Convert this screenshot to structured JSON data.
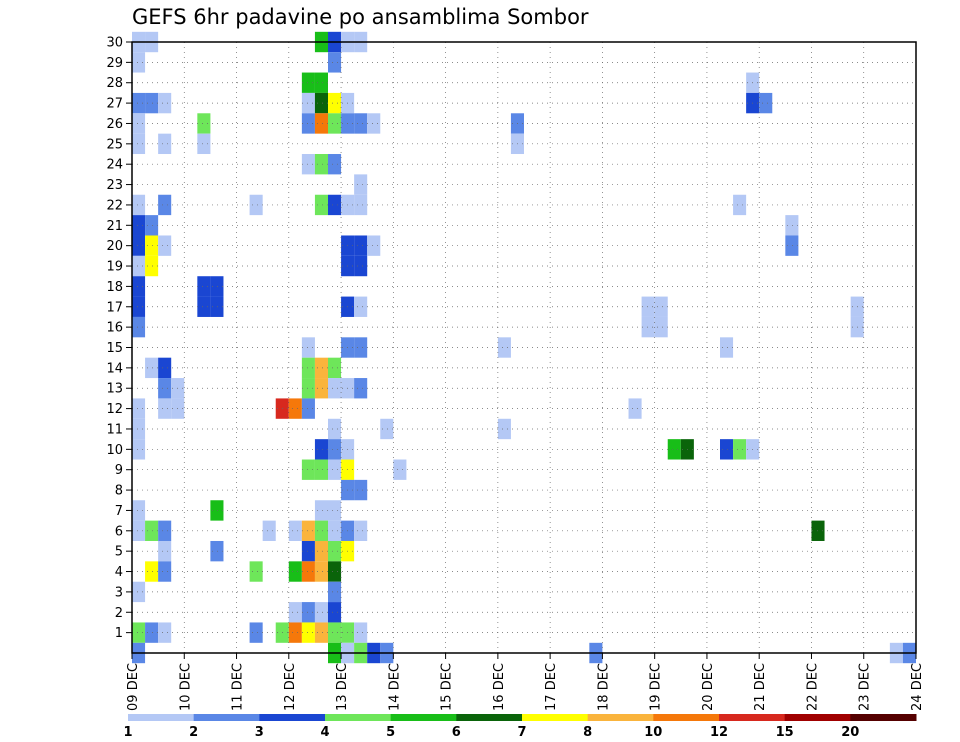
{
  "chart_data": {
    "type": "heatmap",
    "title": "GEFS 6hr padavine po ansamblima Sombor",
    "xlabel": "",
    "ylabel": "",
    "x_tick_labels": [
      "09 DEC",
      "10 DEC",
      "11 DEC",
      "12 DEC",
      "13 DEC",
      "14 DEC",
      "15 DEC",
      "16 DEC",
      "17 DEC",
      "18 DEC",
      "19 DEC",
      "20 DEC",
      "21 DEC",
      "22 DEC",
      "23 DEC",
      "24 DEC"
    ],
    "y_tick_labels": [
      "1",
      "2",
      "3",
      "4",
      "5",
      "6",
      "7",
      "8",
      "9",
      "10",
      "11",
      "12",
      "13",
      "14",
      "15",
      "16",
      "17",
      "18",
      "19",
      "20",
      "21",
      "22",
      "23",
      "24",
      "25",
      "26",
      "27",
      "28",
      "29",
      "30"
    ],
    "xlim": [
      0,
      60
    ],
    "ylim": [
      0,
      30
    ],
    "grid": true,
    "colorbar": {
      "labels": [
        "1",
        "2",
        "3",
        "4",
        "5",
        "6",
        "7",
        "8",
        "10",
        "12",
        "15",
        "20"
      ],
      "colors": [
        "#b4c8f5",
        "#5a87e6",
        "#1a46d2",
        "#6ee65a",
        "#18be18",
        "#0a640a",
        "#ffff00",
        "#fab43c",
        "#f5780a",
        "#d7281e",
        "#a00000",
        "#550000"
      ]
    },
    "cells": [
      [
        0.5,
        30,
        1
      ],
      [
        1.5,
        30,
        1
      ],
      [
        14.5,
        30,
        5
      ],
      [
        15.5,
        30,
        3
      ],
      [
        16.5,
        30,
        1
      ],
      [
        17.5,
        30,
        1
      ],
      [
        0.5,
        29,
        1
      ],
      [
        15.5,
        29,
        2
      ],
      [
        13.5,
        28,
        5
      ],
      [
        14.5,
        28,
        5
      ],
      [
        47.5,
        28,
        1
      ],
      [
        0.5,
        27,
        2
      ],
      [
        1.5,
        27,
        2
      ],
      [
        2.5,
        27,
        1
      ],
      [
        13.5,
        27,
        1
      ],
      [
        14.5,
        27,
        6
      ],
      [
        15.5,
        27,
        7
      ],
      [
        16.5,
        27,
        1
      ],
      [
        47.5,
        27,
        3
      ],
      [
        48.5,
        27,
        2
      ],
      [
        0.5,
        26,
        1
      ],
      [
        5.5,
        26,
        4
      ],
      [
        13.5,
        26,
        2
      ],
      [
        14.5,
        26,
        9
      ],
      [
        15.5,
        26,
        4
      ],
      [
        16.5,
        26,
        2
      ],
      [
        17.5,
        26,
        2
      ],
      [
        18.5,
        26,
        1
      ],
      [
        29.5,
        26,
        2
      ],
      [
        0.5,
        25,
        1
      ],
      [
        2.5,
        25,
        1
      ],
      [
        5.5,
        25,
        1
      ],
      [
        29.5,
        25,
        1
      ],
      [
        13.5,
        24,
        1
      ],
      [
        14.5,
        24,
        4
      ],
      [
        15.5,
        24,
        2
      ],
      [
        17.5,
        23,
        1
      ],
      [
        0.5,
        22,
        1
      ],
      [
        2.5,
        22,
        2
      ],
      [
        9.5,
        22,
        1
      ],
      [
        14.5,
        22,
        4
      ],
      [
        15.5,
        22,
        3
      ],
      [
        16.5,
        22,
        1
      ],
      [
        17.5,
        22,
        1
      ],
      [
        46.5,
        22,
        1
      ],
      [
        0.5,
        21,
        3
      ],
      [
        1.5,
        21,
        2
      ],
      [
        50.5,
        21,
        1
      ],
      [
        0.5,
        20,
        3
      ],
      [
        1.5,
        20,
        7
      ],
      [
        2.5,
        20,
        1
      ],
      [
        16.5,
        20,
        3
      ],
      [
        17.5,
        20,
        3
      ],
      [
        18.5,
        20,
        1
      ],
      [
        50.5,
        20,
        2
      ],
      [
        0.5,
        19,
        1
      ],
      [
        1.5,
        19,
        7
      ],
      [
        16.5,
        19,
        3
      ],
      [
        17.5,
        19,
        3
      ],
      [
        0.5,
        18,
        3
      ],
      [
        5.5,
        18,
        3
      ],
      [
        6.5,
        18,
        3
      ],
      [
        0.5,
        17,
        3
      ],
      [
        5.5,
        17,
        3
      ],
      [
        6.5,
        17,
        3
      ],
      [
        16.5,
        17,
        3
      ],
      [
        17.5,
        17,
        1
      ],
      [
        39.5,
        17,
        1
      ],
      [
        40.5,
        17,
        1
      ],
      [
        55.5,
        17,
        1
      ],
      [
        0.5,
        16,
        2
      ],
      [
        39.5,
        16,
        1
      ],
      [
        40.5,
        16,
        1
      ],
      [
        55.5,
        16,
        1
      ],
      [
        13.5,
        15,
        1
      ],
      [
        16.5,
        15,
        2
      ],
      [
        17.5,
        15,
        2
      ],
      [
        28.5,
        15,
        1
      ],
      [
        45.5,
        15,
        1
      ],
      [
        1.5,
        14,
        1
      ],
      [
        2.5,
        14,
        3
      ],
      [
        13.5,
        14,
        4
      ],
      [
        14.5,
        14,
        8
      ],
      [
        15.5,
        14,
        4
      ],
      [
        2.5,
        13,
        2
      ],
      [
        3.5,
        13,
        1
      ],
      [
        13.5,
        13,
        4
      ],
      [
        14.5,
        13,
        8
      ],
      [
        15.5,
        13,
        1
      ],
      [
        16.5,
        13,
        1
      ],
      [
        17.5,
        13,
        2
      ],
      [
        0.5,
        12,
        1
      ],
      [
        2.5,
        12,
        1
      ],
      [
        3.5,
        12,
        1
      ],
      [
        11.5,
        12,
        10
      ],
      [
        12.5,
        12,
        9
      ],
      [
        13.5,
        12,
        2
      ],
      [
        38.5,
        12,
        1
      ],
      [
        0.5,
        11,
        1
      ],
      [
        15.5,
        11,
        1
      ],
      [
        19.5,
        11,
        1
      ],
      [
        28.5,
        11,
        1
      ],
      [
        0.5,
        10,
        1
      ],
      [
        14.5,
        10,
        3
      ],
      [
        15.5,
        10,
        2
      ],
      [
        16.5,
        10,
        1
      ],
      [
        41.5,
        10,
        5
      ],
      [
        42.5,
        10,
        6
      ],
      [
        45.5,
        10,
        3
      ],
      [
        46.5,
        10,
        4
      ],
      [
        47.5,
        10,
        1
      ],
      [
        20.5,
        9,
        1
      ],
      [
        13.5,
        9,
        4
      ],
      [
        14.5,
        9,
        4
      ],
      [
        15.5,
        9,
        1
      ],
      [
        16.5,
        9,
        7
      ],
      [
        16.5,
        8,
        2
      ],
      [
        17.5,
        8,
        2
      ],
      [
        0.5,
        7,
        1
      ],
      [
        6.5,
        7,
        5
      ],
      [
        14.5,
        7,
        1
      ],
      [
        15.5,
        7,
        1
      ],
      [
        0.5,
        6,
        1
      ],
      [
        1.5,
        6,
        4
      ],
      [
        2.5,
        6,
        2
      ],
      [
        10.5,
        6,
        1
      ],
      [
        12.5,
        6,
        1
      ],
      [
        13.5,
        6,
        8
      ],
      [
        14.5,
        6,
        4
      ],
      [
        15.5,
        6,
        1
      ],
      [
        16.5,
        6,
        2
      ],
      [
        17.5,
        6,
        1
      ],
      [
        52.5,
        6,
        6
      ],
      [
        2.5,
        5,
        1
      ],
      [
        6.5,
        5,
        2
      ],
      [
        13.5,
        5,
        3
      ],
      [
        14.5,
        5,
        8
      ],
      [
        15.5,
        5,
        4
      ],
      [
        16.5,
        5,
        7
      ],
      [
        1.5,
        4,
        7
      ],
      [
        2.5,
        4,
        2
      ],
      [
        9.5,
        4,
        4
      ],
      [
        12.5,
        4,
        5
      ],
      [
        13.5,
        4,
        9
      ],
      [
        14.5,
        4,
        8
      ],
      [
        15.5,
        4,
        6
      ],
      [
        0.5,
        3,
        1
      ],
      [
        15.5,
        3,
        2
      ],
      [
        12.5,
        2,
        1
      ],
      [
        13.5,
        2,
        2
      ],
      [
        14.5,
        2,
        1
      ],
      [
        15.5,
        2,
        3
      ],
      [
        0.5,
        1,
        4
      ],
      [
        1.5,
        1,
        2
      ],
      [
        2.5,
        1,
        1
      ],
      [
        9.5,
        1,
        2
      ],
      [
        11.5,
        1,
        4
      ],
      [
        12.5,
        1,
        9
      ],
      [
        13.5,
        1,
        7
      ],
      [
        14.5,
        1,
        8
      ],
      [
        15.5,
        1,
        4
      ],
      [
        16.5,
        1,
        4
      ],
      [
        17.5,
        1,
        1
      ],
      [
        0.5,
        0,
        2
      ],
      [
        15.5,
        0,
        5
      ],
      [
        16.5,
        0,
        1
      ],
      [
        17.5,
        0,
        4
      ],
      [
        18.5,
        0,
        3
      ],
      [
        19.5,
        0,
        2
      ],
      [
        35.5,
        0,
        2
      ],
      [
        58.5,
        0,
        1
      ],
      [
        59.5,
        0,
        2
      ]
    ]
  }
}
